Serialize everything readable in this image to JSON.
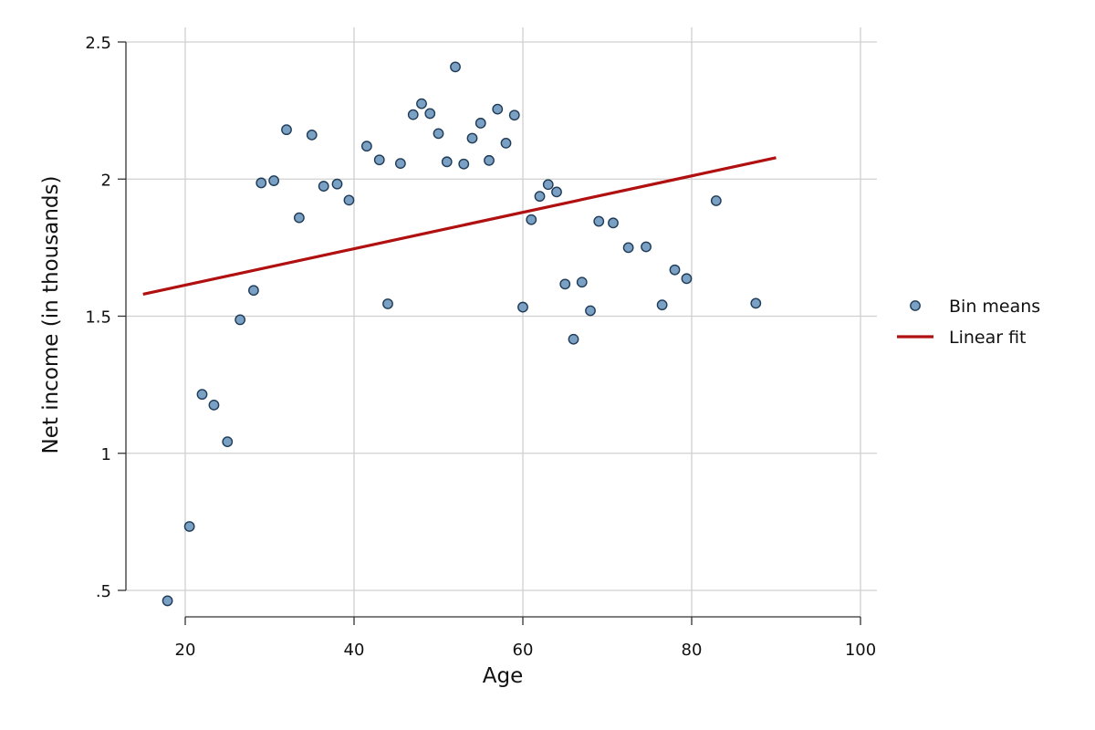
{
  "chart_data": {
    "type": "scatter",
    "xlabel": "Age",
    "ylabel": "Net income (in thousands)",
    "xlim": [
      11,
      100
    ],
    "ylim": [
      0.4,
      2.5
    ],
    "x_ticks": [
      20,
      40,
      60,
      80,
      100
    ],
    "x_tick_labels": [
      "20",
      "40",
      "60",
      "80",
      "100"
    ],
    "y_ticks": [
      0.5,
      1,
      1.5,
      2,
      2.5
    ],
    "y_tick_labels": [
      ".5",
      "1",
      "1.5",
      "2",
      "2.5"
    ],
    "grid": true,
    "legend_position": "right",
    "series": [
      {
        "name": "Bin means",
        "type": "scatter",
        "color": "#7aa0c4",
        "edge_color": "#1f3b57",
        "points": [
          [
            17.9,
            0.462
          ],
          [
            20.5,
            0.733
          ],
          [
            22.0,
            1.215
          ],
          [
            23.4,
            1.176
          ],
          [
            25.0,
            1.042
          ],
          [
            26.5,
            1.487
          ],
          [
            28.1,
            1.594
          ],
          [
            29.0,
            1.986
          ],
          [
            30.5,
            1.994
          ],
          [
            32.0,
            2.18
          ],
          [
            33.5,
            1.859
          ],
          [
            35.0,
            2.161
          ],
          [
            36.4,
            1.974
          ],
          [
            38.0,
            1.982
          ],
          [
            39.4,
            1.923
          ],
          [
            41.5,
            2.12
          ],
          [
            43.0,
            2.07
          ],
          [
            44.0,
            1.545
          ],
          [
            45.5,
            2.057
          ],
          [
            47.0,
            2.235
          ],
          [
            48.0,
            2.275
          ],
          [
            49.0,
            2.239
          ],
          [
            50.0,
            2.166
          ],
          [
            51.0,
            2.063
          ],
          [
            52.0,
            2.409
          ],
          [
            53.0,
            2.055
          ],
          [
            54.0,
            2.149
          ],
          [
            55.0,
            2.204
          ],
          [
            56.0,
            2.068
          ],
          [
            57.0,
            2.255
          ],
          [
            58.0,
            2.131
          ],
          [
            59.0,
            2.233
          ],
          [
            60.0,
            1.533
          ],
          [
            61.0,
            1.852
          ],
          [
            62.0,
            1.937
          ],
          [
            63.0,
            1.98
          ],
          [
            64.0,
            1.953
          ],
          [
            65.0,
            1.617
          ],
          [
            66.0,
            1.416
          ],
          [
            67.0,
            1.624
          ],
          [
            68.0,
            1.52
          ],
          [
            69.0,
            1.846
          ],
          [
            70.7,
            1.84
          ],
          [
            72.5,
            1.75
          ],
          [
            74.6,
            1.753
          ],
          [
            76.5,
            1.541
          ],
          [
            78.0,
            1.669
          ],
          [
            79.4,
            1.637
          ],
          [
            82.9,
            1.921
          ],
          [
            87.6,
            1.547
          ]
        ]
      },
      {
        "name": "Linear fit",
        "type": "line",
        "color": "#b01010",
        "points": [
          [
            15,
            1.58
          ],
          [
            90,
            2.078
          ]
        ]
      }
    ]
  }
}
